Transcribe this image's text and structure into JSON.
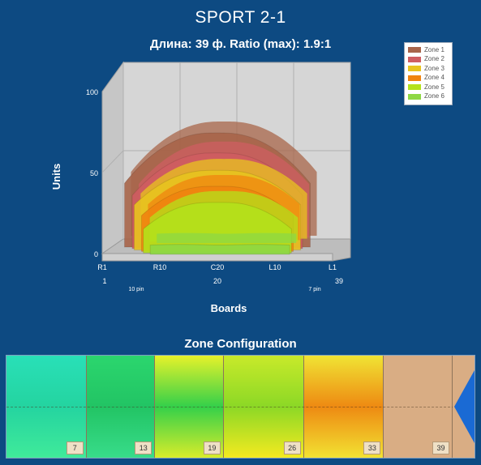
{
  "header": {
    "title": "SPORT 2-1",
    "subtitle": "Длина: 39 ф.  Ratio (max): 1.9:1"
  },
  "chart_data": {
    "type": "area",
    "title": "SPORT 2-1",
    "subtitle": "Длина: 39 ф.  Ratio (max): 1.9:1",
    "xlabel": "Boards",
    "ylabel": "Units",
    "ylim": [
      0,
      100
    ],
    "yticks": [
      "0",
      "50",
      "100"
    ],
    "xticks": [
      "R1",
      "R10",
      "C20",
      "L10",
      "L1"
    ],
    "board_numbers": [
      "1",
      "20",
      "39"
    ],
    "pin_labels": [
      "10 pin",
      "7 pin"
    ],
    "grid": true,
    "legend_position": "top-right",
    "series": [
      {
        "name": "Zone 1",
        "color": "#a8654a",
        "peak": 86,
        "edge": 48,
        "left_board": 4,
        "right_board": 36
      },
      {
        "name": "Zone 2",
        "color": "#cf5d61",
        "peak": 72,
        "edge": 40,
        "left_board": 5,
        "right_board": 35
      },
      {
        "name": "Zone 3",
        "color": "#e8c41f",
        "peak": 60,
        "edge": 34,
        "left_board": 5,
        "right_board": 35
      },
      {
        "name": "Zone 4",
        "color": "#f0840f",
        "peak": 49,
        "edge": 27,
        "left_board": 6,
        "right_board": 34
      },
      {
        "name": "Zone 5",
        "color": "#b4e21b",
        "peak": 38,
        "edge": 18,
        "left_board": 6,
        "right_board": 34
      },
      {
        "name": "Zone 6",
        "color": "#8ed844",
        "peak": 7,
        "edge": 7,
        "left_board": 7,
        "right_board": 34
      }
    ]
  },
  "zone_config": {
    "title": "Zone Configuration",
    "zones": [
      {
        "label": "7",
        "colors": [
          "#29e0b8",
          "#24d4a0",
          "#40ea9a"
        ]
      },
      {
        "label": "13",
        "colors": [
          "#2bd66e",
          "#22c464",
          "#38dc8a"
        ]
      },
      {
        "label": "19",
        "colors": [
          "#e6f22a",
          "#34d04a",
          "#d8ec2a"
        ]
      },
      {
        "label": "26",
        "colors": [
          "#c8ea2a",
          "#8cd826",
          "#f4ea20"
        ]
      },
      {
        "label": "33",
        "colors": [
          "#f0e434",
          "#ee8a12",
          "#f2e232"
        ]
      },
      {
        "label": "39",
        "colors": [
          "#d9ad84",
          "#d9ad84",
          "#d9ad84"
        ]
      }
    ],
    "arrow_color": "#1a6ad4"
  }
}
